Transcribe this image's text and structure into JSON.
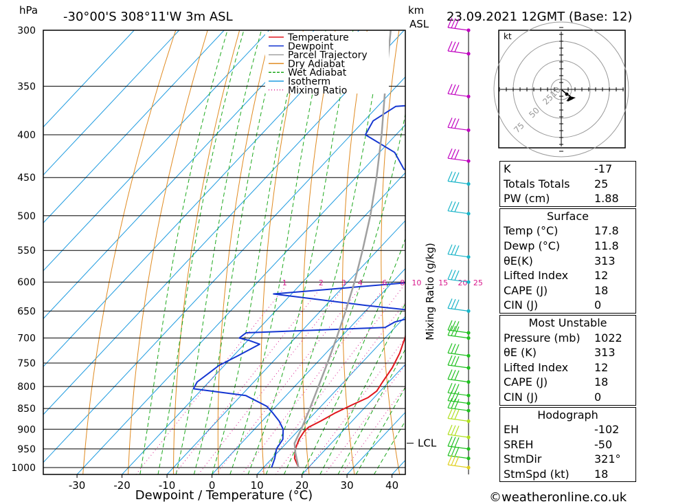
{
  "header": {
    "hpa_label": "hPa",
    "location": "-30°00'S  308°11'W  3m  ASL",
    "km_label": "km",
    "asl_label": "ASL",
    "datetime": "23.09.2021  12GMT  (Base: 12)"
  },
  "chart_data": {
    "type": "line",
    "xlabel": "Dewpoint / Temperature (°C)",
    "ylabel": "hPa",
    "y2label": "Mixing Ratio (g/kg)",
    "xlim": [
      -40,
      40
    ],
    "ylim": [
      1000,
      300
    ],
    "x_ticks": [
      -30,
      -20,
      -10,
      0,
      10,
      20,
      30,
      40
    ],
    "pressure_levels": [
      300,
      350,
      400,
      450,
      500,
      550,
      600,
      650,
      700,
      750,
      800,
      850,
      900,
      950,
      1000
    ],
    "mixing_ratio_labels": [
      "1",
      "2",
      "3",
      "4",
      "6",
      "8",
      "10",
      "15",
      "20",
      "25"
    ],
    "mixing_ratio_values": [
      1,
      2,
      3,
      4,
      6,
      8,
      10,
      15,
      20,
      25
    ],
    "lcl_label": "LCL",
    "lcl_pressure": 935,
    "legend": {
      "position": "top-right",
      "items": [
        {
          "label": "Temperature",
          "color": "#e0161d",
          "style": "solid"
        },
        {
          "label": "Dewpoint",
          "color": "#1436d1",
          "style": "solid"
        },
        {
          "label": "Parcel Trajectory",
          "color": "#a0a0a0",
          "style": "solid"
        },
        {
          "label": "Dry Adiabat",
          "color": "#e08a20",
          "style": "solid"
        },
        {
          "label": "Wet Adiabat",
          "color": "#1ca81c",
          "style": "dashed"
        },
        {
          "label": "Isotherm",
          "color": "#1e9be0",
          "style": "solid"
        },
        {
          "label": "Mixing Ratio",
          "color": "#d8188c",
          "style": "dotted"
        }
      ]
    },
    "series": [
      {
        "name": "Temperature",
        "color": "#e0161d",
        "points": [
          [
            1000,
            17.8
          ],
          [
            975,
            15.0
          ],
          [
            950,
            13.2
          ],
          [
            925,
            12.0
          ],
          [
            905,
            11.5
          ],
          [
            895,
            11.6
          ],
          [
            880,
            13.0
          ],
          [
            860,
            14.6
          ],
          [
            840,
            16.8
          ],
          [
            825,
            18.6
          ],
          [
            810,
            19.2
          ],
          [
            790,
            18.6
          ],
          [
            760,
            17.8
          ],
          [
            730,
            16.4
          ],
          [
            700,
            14.4
          ],
          [
            680,
            12.8
          ],
          [
            660,
            11.8
          ],
          [
            640,
            10.4
          ],
          [
            620,
            8.6
          ],
          [
            600,
            6.8
          ],
          [
            575,
            4.8
          ],
          [
            550,
            2.6
          ],
          [
            525,
            0.8
          ],
          [
            500,
            -0.6
          ],
          [
            480,
            -2.4
          ],
          [
            460,
            -4.8
          ],
          [
            440,
            -7.2
          ],
          [
            420,
            -9.0
          ],
          [
            400,
            -11.2
          ],
          [
            375,
            -14.4
          ],
          [
            350,
            -17.8
          ],
          [
            330,
            -21.4
          ],
          [
            310,
            -24.8
          ],
          [
            300,
            -26.6
          ]
        ]
      },
      {
        "name": "Dewpoint",
        "color": "#1436d1",
        "points": [
          [
            1000,
            11.8
          ],
          [
            975,
            10.6
          ],
          [
            950,
            9.0
          ],
          [
            925,
            8.4
          ],
          [
            900,
            6.4
          ],
          [
            880,
            3.8
          ],
          [
            860,
            0.6
          ],
          [
            845,
            -2.0
          ],
          [
            820,
            -9.0
          ],
          [
            805,
            -22.0
          ],
          [
            790,
            -22.6
          ],
          [
            770,
            -21.8
          ],
          [
            755,
            -21.2
          ],
          [
            735,
            -19.0
          ],
          [
            712,
            -16.6
          ],
          [
            705,
            -19.6
          ],
          [
            700,
            -22.4
          ],
          [
            690,
            -22.0
          ],
          [
            680,
            7.8
          ],
          [
            670,
            8.8
          ],
          [
            660,
            12.2
          ],
          [
            650,
            11.8
          ],
          [
            640,
            -1.0
          ],
          [
            620,
            -24.0
          ],
          [
            600,
            5.0
          ],
          [
            590,
            6.0
          ],
          [
            575,
            6.2
          ],
          [
            560,
            6.4
          ],
          [
            550,
            5.6
          ],
          [
            535,
            -0.6
          ],
          [
            520,
            -8.0
          ],
          [
            500,
            -5.2
          ],
          [
            480,
            -6.4
          ],
          [
            460,
            -9.0
          ],
          [
            450,
            -10.6
          ],
          [
            440,
            -21.0
          ],
          [
            420,
            -26.6
          ],
          [
            400,
            -36.8
          ],
          [
            385,
            -38.0
          ],
          [
            370,
            -36.0
          ],
          [
            365,
            -23.0
          ],
          [
            340,
            -36.0
          ],
          [
            330,
            -40.0
          ],
          [
            310,
            -35.0
          ],
          [
            300,
            -33.0
          ]
        ]
      },
      {
        "name": "Parcel Trajectory",
        "color": "#a0a0a0",
        "points": [
          [
            1000,
            17.8
          ],
          [
            960,
            14.0
          ],
          [
            935,
            11.8
          ],
          [
            900,
            10.4
          ],
          [
            850,
            8.0
          ],
          [
            800,
            5.3
          ],
          [
            750,
            2.4
          ],
          [
            700,
            -0.8
          ],
          [
            650,
            -4.4
          ],
          [
            600,
            -8.5
          ],
          [
            550,
            -13.3
          ],
          [
            500,
            -18.8
          ],
          [
            450,
            -25.4
          ],
          [
            400,
            -33.2
          ],
          [
            350,
            -42.5
          ],
          [
            300,
            -53.0
          ]
        ]
      }
    ]
  },
  "hodograph": {
    "unit": "kt",
    "ring_labels": [
      "10",
      "25",
      "50",
      "75"
    ]
  },
  "wind_profile": {
    "barb_pressures": [
      300,
      320,
      360,
      395,
      430,
      458,
      497,
      560,
      600,
      650,
      690,
      700,
      735,
      760,
      790,
      820,
      838,
      855,
      880,
      920,
      950,
      975,
      1000
    ]
  },
  "tables": {
    "indices": [
      {
        "label": "K",
        "value": "-17"
      },
      {
        "label": "Totals Totals",
        "value": "25"
      },
      {
        "label": "PW (cm)",
        "value": "1.88"
      }
    ],
    "surface": {
      "title": "Surface",
      "rows": [
        {
          "label": "Temp (°C)",
          "value": "17.8"
        },
        {
          "label": "Dewp (°C)",
          "value": "11.8"
        },
        {
          "label": "θE(K)",
          "value": "313"
        },
        {
          "label": "Lifted Index",
          "value": "12"
        },
        {
          "label": "CAPE (J)",
          "value": "18"
        },
        {
          "label": "CIN (J)",
          "value": "0"
        }
      ]
    },
    "most_unstable": {
      "title": "Most Unstable",
      "rows": [
        {
          "label": "Pressure (mb)",
          "value": "1022"
        },
        {
          "label": "θE (K)",
          "value": "313"
        },
        {
          "label": "Lifted Index",
          "value": "12"
        },
        {
          "label": "CAPE (J)",
          "value": "18"
        },
        {
          "label": "CIN (J)",
          "value": "0"
        }
      ]
    },
    "hodograph_table": {
      "title": "Hodograph",
      "rows": [
        {
          "label": "EH",
          "value": "-102"
        },
        {
          "label": "SREH",
          "value": "-50"
        },
        {
          "label": "StmDir",
          "value": "321°"
        },
        {
          "label": "StmSpd (kt)",
          "value": "18"
        }
      ]
    }
  },
  "footer": {
    "copyright": "©weatheronline.co.uk"
  }
}
